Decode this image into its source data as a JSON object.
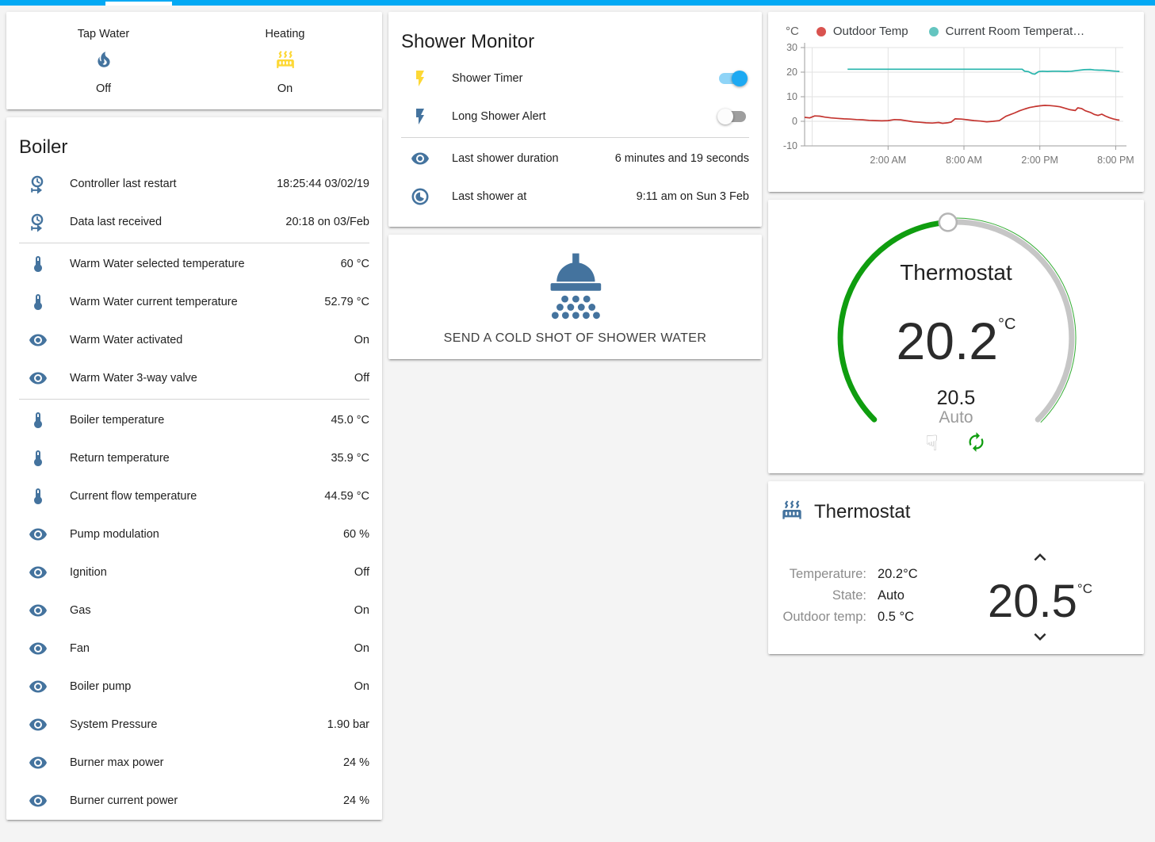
{
  "header": {
    "accent_color": "#03a9f4"
  },
  "glance_card": {
    "items": [
      {
        "label": "Tap Water",
        "state": "Off",
        "icon": "fire",
        "icon_color": "#44739e"
      },
      {
        "label": "Heating",
        "state": "On",
        "icon": "radiator",
        "icon_color": "#fdd835"
      }
    ]
  },
  "boiler_card": {
    "title": "Boiler",
    "rows": [
      {
        "icon": "clock-start",
        "label": "Controller last restart",
        "value": "18:25:44 03/02/19"
      },
      {
        "icon": "clock-start",
        "label": "Data last received",
        "value": "20:18 on 03/Feb",
        "divider_after": true
      },
      {
        "icon": "thermometer",
        "label": "Warm Water selected temperature",
        "value": "60 °C"
      },
      {
        "icon": "thermometer",
        "label": "Warm Water current temperature",
        "value": "52.79 °C"
      },
      {
        "icon": "eye",
        "label": "Warm Water activated",
        "value": "On"
      },
      {
        "icon": "eye",
        "label": "Warm Water 3-way valve",
        "value": "Off",
        "divider_after": true
      },
      {
        "icon": "thermometer",
        "label": "Boiler temperature",
        "value": "45.0 °C"
      },
      {
        "icon": "thermometer",
        "label": "Return temperature",
        "value": "35.9 °C"
      },
      {
        "icon": "thermometer",
        "label": "Current flow temperature",
        "value": "44.59 °C"
      },
      {
        "icon": "eye",
        "label": "Pump modulation",
        "value": "60 %"
      },
      {
        "icon": "eye",
        "label": "Ignition",
        "value": "Off"
      },
      {
        "icon": "eye",
        "label": "Gas",
        "value": "On"
      },
      {
        "icon": "eye",
        "label": "Fan",
        "value": "On"
      },
      {
        "icon": "eye",
        "label": "Boiler pump",
        "value": "On"
      },
      {
        "icon": "eye",
        "label": "System Pressure",
        "value": "1.90 bar"
      },
      {
        "icon": "eye",
        "label": "Burner max power",
        "value": "24 %"
      },
      {
        "icon": "eye",
        "label": "Burner current power",
        "value": "24 %"
      }
    ],
    "icon_color": "#44739e"
  },
  "shower_monitor": {
    "title": "Shower Monitor",
    "toggles": [
      {
        "icon": "flash",
        "icon_color": "#fdd835",
        "label": "Shower Timer",
        "on": true
      },
      {
        "icon": "flash",
        "icon_color": "#44739e",
        "label": "Long Shower Alert",
        "on": false
      }
    ],
    "info_rows": [
      {
        "icon": "eye",
        "label": "Last shower duration",
        "value": "6 minutes and 19 seconds"
      },
      {
        "icon": "clock-progress",
        "label": "Last shower at",
        "value": "9:11 am on Sun 3 Feb"
      }
    ],
    "icon_color": "#44739e"
  },
  "shower_button": {
    "label": "SEND A COLD SHOT OF SHOWER WATER",
    "icon": "shower-head",
    "icon_color": "#44739e"
  },
  "chart_data": {
    "type": "line",
    "unit": "°C",
    "grid": true,
    "legend_position": "top",
    "ylim": [
      -10,
      30
    ],
    "y_ticks": [
      30,
      20,
      10,
      0,
      -10
    ],
    "x_range_hours": [
      -4.6,
      20.6
    ],
    "x_gridlines_hours": [
      -4,
      2,
      8,
      14,
      20
    ],
    "x_tick_labels": [
      {
        "hour": 2,
        "label": "2:00 AM"
      },
      {
        "hour": 8,
        "label": "8:00 AM"
      },
      {
        "hour": 14,
        "label": "2:00 PM"
      },
      {
        "hour": 20,
        "label": "8:00 PM"
      }
    ],
    "series": [
      {
        "name": "Outdoor Temp",
        "color": "#c43530",
        "dot_color": "#d9534f",
        "points": [
          [
            -4.6,
            1.6
          ],
          [
            -4.2,
            1.4
          ],
          [
            -3.8,
            2.2
          ],
          [
            -3.4,
            2.1
          ],
          [
            -3.0,
            1.7
          ],
          [
            -2.5,
            1.4
          ],
          [
            -2.0,
            1.2
          ],
          [
            -1.5,
            1.0
          ],
          [
            -1.0,
            0.9
          ],
          [
            -0.5,
            0.7
          ],
          [
            0,
            0.6
          ],
          [
            0.5,
            0.4
          ],
          [
            1.0,
            0.3
          ],
          [
            1.5,
            0.2
          ],
          [
            2.0,
            0.3
          ],
          [
            2.5,
            0.7
          ],
          [
            3.0,
            0.6
          ],
          [
            3.5,
            0.2
          ],
          [
            4.0,
            -0.2
          ],
          [
            4.5,
            -0.4
          ],
          [
            5.0,
            -0.6
          ],
          [
            5.5,
            -0.7
          ],
          [
            6.0,
            -0.5
          ],
          [
            6.3,
            -0.8
          ],
          [
            6.7,
            -0.6
          ],
          [
            7.0,
            -0.3
          ],
          [
            7.3,
            1.0
          ],
          [
            7.8,
            0.9
          ],
          [
            8.3,
            0.6
          ],
          [
            8.8,
            0.3
          ],
          [
            9.3,
            0.1
          ],
          [
            9.8,
            -0.2
          ],
          [
            10.3,
            0.0
          ],
          [
            10.8,
            0.3
          ],
          [
            11.0,
            1.0
          ],
          [
            11.3,
            2.0
          ],
          [
            11.6,
            2.6
          ],
          [
            12.0,
            3.4
          ],
          [
            12.4,
            4.3
          ],
          [
            12.8,
            5.0
          ],
          [
            13.2,
            5.6
          ],
          [
            13.6,
            6.0
          ],
          [
            14.0,
            6.3
          ],
          [
            14.4,
            6.5
          ],
          [
            14.8,
            6.4
          ],
          [
            15.2,
            6.2
          ],
          [
            15.6,
            5.9
          ],
          [
            16.0,
            5.3
          ],
          [
            16.4,
            4.7
          ],
          [
            16.8,
            4.4
          ],
          [
            17.0,
            5.5
          ],
          [
            17.3,
            5.2
          ],
          [
            17.6,
            4.3
          ],
          [
            18.0,
            3.6
          ],
          [
            18.3,
            2.8
          ],
          [
            18.6,
            2.4
          ],
          [
            18.9,
            2.9
          ],
          [
            19.2,
            2.1
          ],
          [
            19.5,
            1.5
          ],
          [
            19.8,
            1.0
          ],
          [
            20.1,
            0.6
          ],
          [
            20.3,
            0.5
          ]
        ]
      },
      {
        "name": "Current Room Temperat…",
        "color": "#27b5ac",
        "dot_color": "#64c5c0",
        "points": [
          [
            -1.2,
            21.2
          ],
          [
            12.6,
            21.2
          ],
          [
            12.8,
            20.4
          ],
          [
            13.1,
            20.2
          ],
          [
            13.4,
            19.4
          ],
          [
            13.6,
            19.2
          ],
          [
            13.9,
            20.2
          ],
          [
            14.2,
            20.4
          ],
          [
            14.6,
            20.3
          ],
          [
            15.0,
            20.4
          ],
          [
            15.5,
            20.4
          ],
          [
            16.0,
            20.3
          ],
          [
            16.5,
            20.4
          ],
          [
            17.0,
            20.7
          ],
          [
            17.5,
            21.0
          ],
          [
            18.0,
            21.1
          ],
          [
            18.3,
            20.9
          ],
          [
            18.7,
            20.8
          ],
          [
            19.0,
            20.8
          ],
          [
            19.5,
            20.6
          ],
          [
            20.0,
            20.4
          ],
          [
            20.3,
            20.3
          ]
        ]
      }
    ]
  },
  "dial_card": {
    "title": "Thermostat",
    "current": "20.2",
    "unit": "°C",
    "target": "20.5",
    "mode": "Auto",
    "arc_green": "#0f9d0f",
    "arc_gray": "#c6c6c6"
  },
  "thermostat_card": {
    "title": "Thermostat",
    "icon_color": "#44739e",
    "attributes": [
      {
        "label": "Temperature:",
        "value": "20.2°C"
      },
      {
        "label": "State:",
        "value": "Auto"
      },
      {
        "label": "Outdoor temp:",
        "value": "0.5 °C"
      }
    ],
    "setpoint": "20.5",
    "setpoint_unit": "°C"
  }
}
